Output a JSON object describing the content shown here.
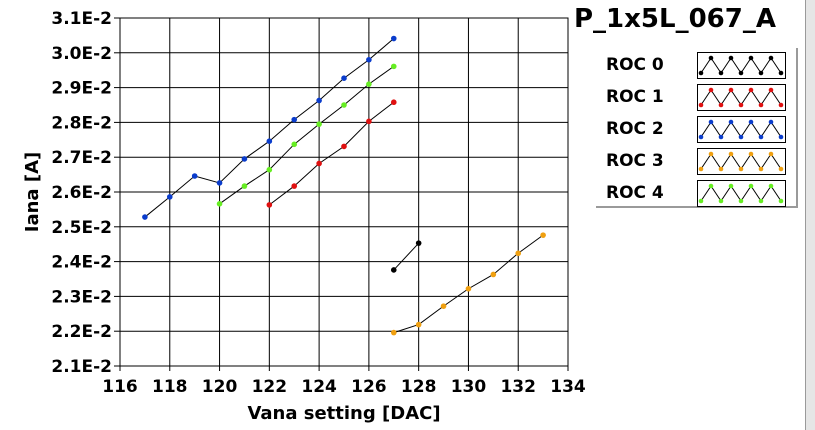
{
  "chart_data": {
    "type": "line",
    "title": "P_1x5L_067_A",
    "xlabel": "Vana setting [DAC]",
    "ylabel": "Iana [A]",
    "xlim": [
      116,
      134
    ],
    "ylim": [
      0.021,
      0.031
    ],
    "x_ticks": [
      "116",
      "118",
      "120",
      "122",
      "124",
      "126",
      "128",
      "130",
      "132",
      "134"
    ],
    "y_ticks": [
      "2.1E-2",
      "2.2E-2",
      "2.3E-2",
      "2.4E-2",
      "2.5E-2",
      "2.6E-2",
      "2.7E-2",
      "2.8E-2",
      "2.9E-2",
      "3.0E-2",
      "3.1E-2"
    ],
    "grid": true,
    "legend_position": "right",
    "series": [
      {
        "name": "ROC 0",
        "color": "#000000",
        "points": [
          [
            127,
            0.02376
          ],
          [
            128,
            0.02453
          ]
        ]
      },
      {
        "name": "ROC 1",
        "color": "#e01010",
        "points": [
          [
            122,
            0.02563
          ],
          [
            123,
            0.02617
          ],
          [
            124,
            0.02682
          ],
          [
            125,
            0.02731
          ],
          [
            126,
            0.02803
          ],
          [
            127,
            0.02858
          ]
        ]
      },
      {
        "name": "ROC 2",
        "color": "#0a3ccc",
        "points": [
          [
            117,
            0.02528
          ],
          [
            118,
            0.02586
          ],
          [
            119,
            0.02646
          ],
          [
            120,
            0.02626
          ],
          [
            121,
            0.02695
          ],
          [
            122,
            0.02746
          ],
          [
            123,
            0.02808
          ],
          [
            124,
            0.02863
          ],
          [
            125,
            0.02927
          ],
          [
            126,
            0.0298
          ],
          [
            127,
            0.03041
          ]
        ]
      },
      {
        "name": "ROC 3",
        "color": "#f0a010",
        "points": [
          [
            127,
            0.02196
          ],
          [
            128,
            0.02219
          ],
          [
            129,
            0.02272
          ],
          [
            130,
            0.02322
          ],
          [
            131,
            0.02363
          ],
          [
            132,
            0.02424
          ],
          [
            133,
            0.02476
          ]
        ]
      },
      {
        "name": "ROC 4",
        "color": "#66ee22",
        "points": [
          [
            120,
            0.02566
          ],
          [
            121,
            0.02617
          ],
          [
            122,
            0.02664
          ],
          [
            123,
            0.02737
          ],
          [
            124,
            0.02795
          ],
          [
            125,
            0.0285
          ],
          [
            126,
            0.0291
          ],
          [
            127,
            0.02961
          ]
        ]
      }
    ]
  }
}
